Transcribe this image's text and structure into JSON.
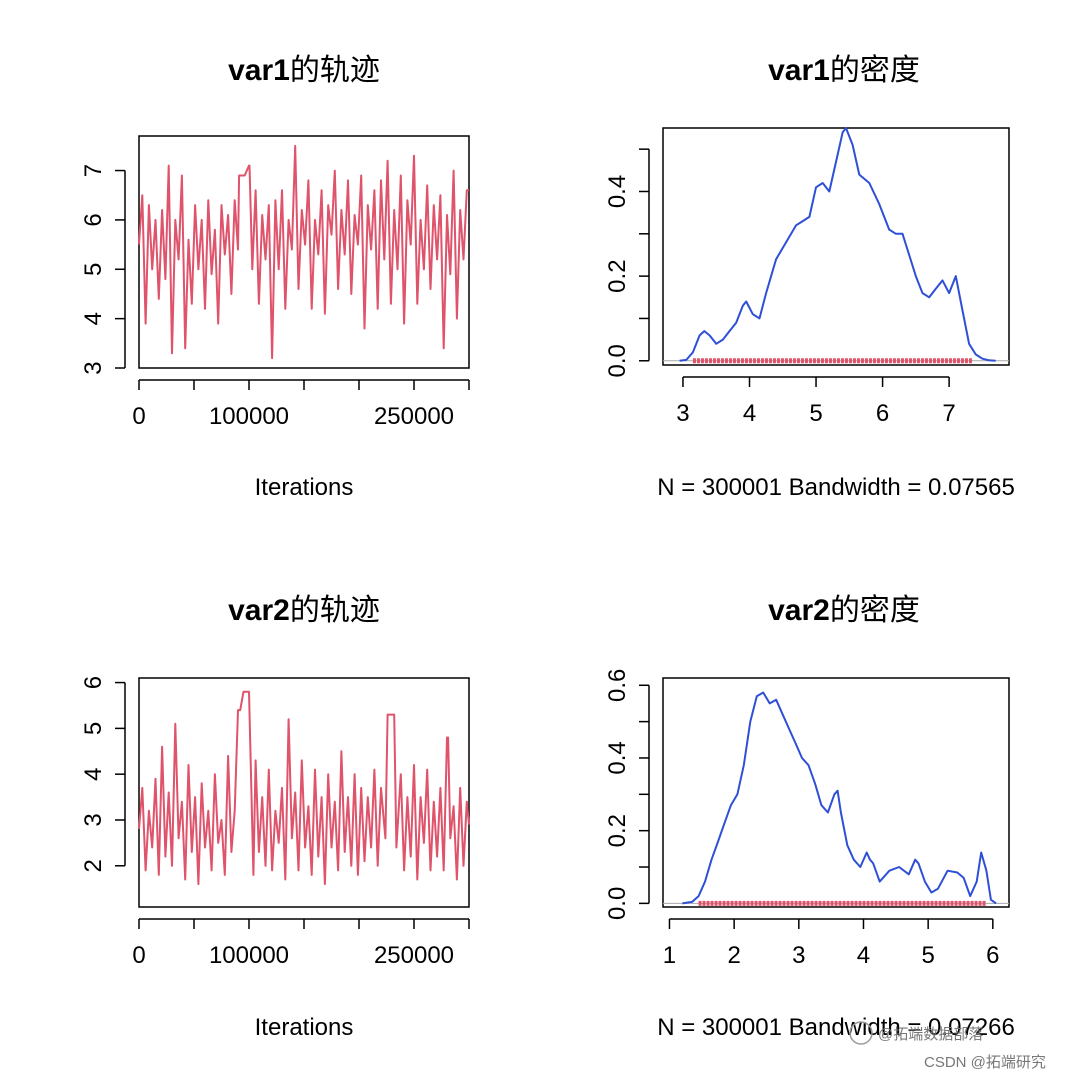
{
  "watermark": {
    "line1": "@拓端数据部落",
    "line2": "CSDN @拓端研究"
  },
  "chart_data": [
    {
      "id": "trace1",
      "type": "line",
      "title_bold": "var1",
      "title_rest": "的轨迹",
      "xlabel": "Iterations",
      "xlim": [
        0,
        300001
      ],
      "ylim": [
        3.0,
        7.7
      ],
      "xticks": [
        0,
        50000,
        100000,
        150000,
        200000,
        250000,
        300000
      ],
      "xtick_labels": [
        "0",
        "",
        "100000",
        "",
        "",
        "250000",
        ""
      ],
      "yticks": [
        3,
        4,
        5,
        6,
        7
      ],
      "ytick_labels": [
        "3",
        "4",
        "5",
        "6",
        "7"
      ],
      "color": "#df536b",
      "series": [
        {
          "x": [
            0,
            3000,
            6000,
            9000,
            12000,
            15000,
            18000,
            21000,
            24000,
            27000,
            30000,
            33000,
            36000,
            39000,
            42000,
            45000,
            48000,
            51000,
            54000,
            57000,
            60000,
            63000,
            66000,
            69000,
            72000,
            75000,
            78000,
            81000,
            84000,
            87000,
            90000,
            91000,
            96000,
            100000,
            100500,
            103000,
            106000,
            109000,
            112000,
            115000,
            118000,
            121000,
            124000,
            127000,
            130000,
            133000,
            136000,
            139000,
            142000,
            145000,
            148000,
            151000,
            154000,
            157000,
            160000,
            163000,
            166000,
            169000,
            172000,
            175000,
            178000,
            181000,
            184000,
            187000,
            190000,
            193000,
            196000,
            199000,
            202000,
            205000,
            208000,
            211000,
            214000,
            217000,
            220000,
            223000,
            226000,
            229000,
            232000,
            235000,
            238000,
            241000,
            244000,
            247000,
            250000,
            253000,
            256000,
            259000,
            262000,
            265000,
            268000,
            271000,
            274000,
            277000,
            280000,
            283000,
            286000,
            289000,
            292000,
            295000,
            298000,
            300001
          ],
          "y": [
            5.5,
            6.5,
            3.9,
            6.3,
            5.0,
            6.0,
            4.4,
            6.2,
            4.8,
            7.1,
            3.3,
            6.0,
            5.2,
            6.9,
            3.4,
            5.6,
            4.3,
            6.3,
            5.0,
            6.0,
            4.2,
            6.4,
            4.9,
            5.8,
            3.9,
            6.3,
            5.3,
            6.1,
            4.5,
            6.4,
            5.4,
            6.9,
            6.9,
            7.1,
            7.1,
            5.0,
            6.6,
            4.3,
            6.1,
            5.2,
            6.3,
            3.2,
            6.4,
            5.0,
            6.6,
            4.2,
            6.0,
            5.4,
            7.5,
            4.6,
            6.2,
            5.5,
            6.8,
            4.2,
            6.0,
            5.3,
            6.6,
            4.1,
            6.3,
            5.7,
            7.0,
            4.6,
            6.2,
            5.3,
            6.8,
            4.5,
            6.1,
            5.5,
            6.9,
            3.8,
            6.3,
            5.4,
            6.6,
            4.2,
            6.8,
            5.2,
            7.2,
            4.3,
            6.2,
            5.0,
            6.9,
            3.9,
            6.4,
            5.5,
            7.3,
            4.3,
            6.0,
            5.0,
            6.7,
            4.6,
            6.3,
            5.2,
            6.5,
            3.4,
            6.1,
            4.9,
            7.0,
            4.0,
            6.2,
            5.2,
            6.6,
            6.6
          ]
        }
      ]
    },
    {
      "id": "density1",
      "type": "area",
      "title_bold": "var1",
      "title_rest": "的密度",
      "xlabel": "N = 300001   Bandwidth = 0.07565",
      "xlim": [
        2.7,
        7.9
      ],
      "ylim": [
        -0.01,
        0.55
      ],
      "xticks": [
        3,
        4,
        5,
        6,
        7
      ],
      "xtick_labels": [
        "3",
        "4",
        "5",
        "6",
        "7"
      ],
      "yticks": [
        0.0,
        0.1,
        0.2,
        0.3,
        0.4,
        0.5
      ],
      "ytick_labels": [
        "0.0",
        "",
        "0.2",
        "",
        "0.4",
        ""
      ],
      "color": "#2e4fd6",
      "rug_color": "#df536b",
      "rug_range": [
        3.15,
        7.35
      ],
      "series": [
        {
          "x": [
            2.95,
            3.05,
            3.15,
            3.25,
            3.32,
            3.4,
            3.5,
            3.6,
            3.7,
            3.8,
            3.9,
            3.95,
            4.05,
            4.15,
            4.25,
            4.4,
            4.55,
            4.7,
            4.8,
            4.9,
            5.0,
            5.1,
            5.2,
            5.3,
            5.4,
            5.45,
            5.55,
            5.65,
            5.8,
            5.95,
            6.1,
            6.2,
            6.3,
            6.4,
            6.5,
            6.6,
            6.7,
            6.8,
            6.9,
            7.0,
            7.1,
            7.2,
            7.3,
            7.4,
            7.5,
            7.6,
            7.7
          ],
          "y": [
            0.0,
            0.002,
            0.02,
            0.06,
            0.07,
            0.06,
            0.04,
            0.05,
            0.07,
            0.09,
            0.13,
            0.14,
            0.11,
            0.1,
            0.16,
            0.24,
            0.28,
            0.32,
            0.33,
            0.34,
            0.41,
            0.42,
            0.4,
            0.47,
            0.54,
            0.55,
            0.51,
            0.44,
            0.42,
            0.37,
            0.31,
            0.3,
            0.3,
            0.25,
            0.2,
            0.16,
            0.15,
            0.17,
            0.19,
            0.16,
            0.2,
            0.12,
            0.04,
            0.015,
            0.005,
            0.001,
            0.0
          ]
        }
      ]
    },
    {
      "id": "trace2",
      "type": "line",
      "title_bold": "var2",
      "title_rest": "的轨迹",
      "xlabel": "Iterations",
      "xlim": [
        0,
        300001
      ],
      "ylim": [
        1.1,
        6.1
      ],
      "xticks": [
        0,
        50000,
        100000,
        150000,
        200000,
        250000,
        300000
      ],
      "xtick_labels": [
        "0",
        "",
        "100000",
        "",
        "",
        "250000",
        ""
      ],
      "yticks": [
        2,
        3,
        4,
        5,
        6
      ],
      "ytick_labels": [
        "2",
        "3",
        "4",
        "5",
        "6"
      ],
      "color": "#df536b",
      "series": [
        {
          "x": [
            0,
            3000,
            6000,
            9000,
            12000,
            15000,
            18000,
            21000,
            24000,
            27000,
            30000,
            33000,
            36000,
            39000,
            42000,
            45000,
            48000,
            51000,
            54000,
            57000,
            60000,
            63000,
            66000,
            69000,
            72000,
            75000,
            78000,
            81000,
            84000,
            87000,
            90000,
            92000,
            95000,
            96000,
            100000,
            104000,
            106000,
            109000,
            112000,
            115000,
            118000,
            121000,
            124000,
            127000,
            130000,
            133000,
            136000,
            139000,
            142000,
            145000,
            148000,
            151000,
            154000,
            157000,
            160000,
            163000,
            166000,
            169000,
            172000,
            175000,
            178000,
            181000,
            184000,
            187000,
            190000,
            193000,
            196000,
            199000,
            202000,
            205000,
            208000,
            211000,
            214000,
            217000,
            220000,
            224000,
            226000,
            228000,
            232000,
            234000,
            238000,
            241000,
            244000,
            247000,
            250000,
            253000,
            256000,
            259000,
            262000,
            265000,
            268000,
            271000,
            274000,
            277000,
            280000,
            281000,
            283000,
            286000,
            289000,
            292000,
            295000,
            298000,
            300001
          ],
          "y": [
            2.8,
            3.7,
            1.9,
            3.2,
            2.4,
            3.9,
            1.8,
            4.6,
            2.2,
            3.6,
            2.0,
            5.1,
            2.6,
            3.4,
            1.7,
            4.2,
            2.3,
            3.5,
            1.6,
            3.8,
            2.4,
            3.2,
            1.9,
            4.0,
            2.5,
            3.0,
            1.8,
            4.4,
            2.3,
            3.2,
            5.4,
            5.4,
            5.8,
            5.8,
            5.8,
            1.8,
            4.3,
            2.3,
            3.5,
            2.0,
            4.1,
            1.9,
            3.2,
            2.5,
            3.7,
            1.7,
            5.2,
            2.6,
            3.6,
            1.9,
            4.3,
            2.4,
            3.3,
            1.8,
            4.1,
            2.2,
            3.5,
            1.6,
            4.0,
            2.4,
            3.4,
            1.9,
            4.5,
            2.3,
            3.5,
            2.0,
            4.0,
            1.8,
            3.7,
            2.1,
            3.5,
            2.4,
            4.1,
            2.0,
            3.7,
            2.6,
            5.3,
            5.3,
            5.3,
            2.4,
            4.0,
            1.9,
            3.5,
            2.2,
            4.2,
            1.7,
            3.5,
            2.5,
            4.1,
            1.9,
            3.4,
            2.2,
            3.7,
            1.9,
            4.8,
            4.8,
            2.6,
            3.3,
            1.7,
            3.7,
            2.0,
            3.4,
            2.9
          ]
        }
      ]
    },
    {
      "id": "density2",
      "type": "area",
      "title_bold": "var2",
      "title_rest": "的密度",
      "xlabel": "N = 300001   Bandwidth = 0.07266",
      "xlim": [
        0.9,
        6.25
      ],
      "ylim": [
        -0.01,
        0.62
      ],
      "xticks": [
        1,
        2,
        3,
        4,
        5,
        6
      ],
      "xtick_labels": [
        "1",
        "2",
        "3",
        "4",
        "5",
        "6"
      ],
      "yticks": [
        0.0,
        0.1,
        0.2,
        0.3,
        0.4,
        0.5,
        0.6
      ],
      "ytick_labels": [
        "0.0",
        "",
        "0.2",
        "",
        "0.4",
        "",
        "0.6"
      ],
      "color": "#2e4fd6",
      "rug_color": "#df536b",
      "rug_range": [
        1.45,
        5.9
      ],
      "series": [
        {
          "x": [
            1.2,
            1.35,
            1.45,
            1.55,
            1.65,
            1.75,
            1.85,
            1.95,
            2.05,
            2.15,
            2.25,
            2.35,
            2.45,
            2.55,
            2.65,
            2.75,
            2.85,
            2.95,
            3.05,
            3.15,
            3.25,
            3.35,
            3.45,
            3.55,
            3.6,
            3.65,
            3.75,
            3.85,
            3.95,
            4.05,
            4.1,
            4.15,
            4.25,
            4.4,
            4.55,
            4.7,
            4.8,
            4.85,
            4.95,
            5.05,
            5.15,
            5.3,
            5.45,
            5.55,
            5.65,
            5.75,
            5.82,
            5.9,
            5.97,
            6.05
          ],
          "y": [
            0.0,
            0.004,
            0.02,
            0.06,
            0.12,
            0.17,
            0.22,
            0.27,
            0.3,
            0.38,
            0.5,
            0.57,
            0.58,
            0.55,
            0.56,
            0.52,
            0.48,
            0.44,
            0.4,
            0.38,
            0.33,
            0.27,
            0.25,
            0.3,
            0.31,
            0.25,
            0.16,
            0.12,
            0.1,
            0.14,
            0.12,
            0.11,
            0.06,
            0.09,
            0.1,
            0.08,
            0.12,
            0.11,
            0.06,
            0.03,
            0.04,
            0.09,
            0.085,
            0.07,
            0.02,
            0.06,
            0.14,
            0.09,
            0.01,
            0.0
          ]
        }
      ]
    }
  ]
}
